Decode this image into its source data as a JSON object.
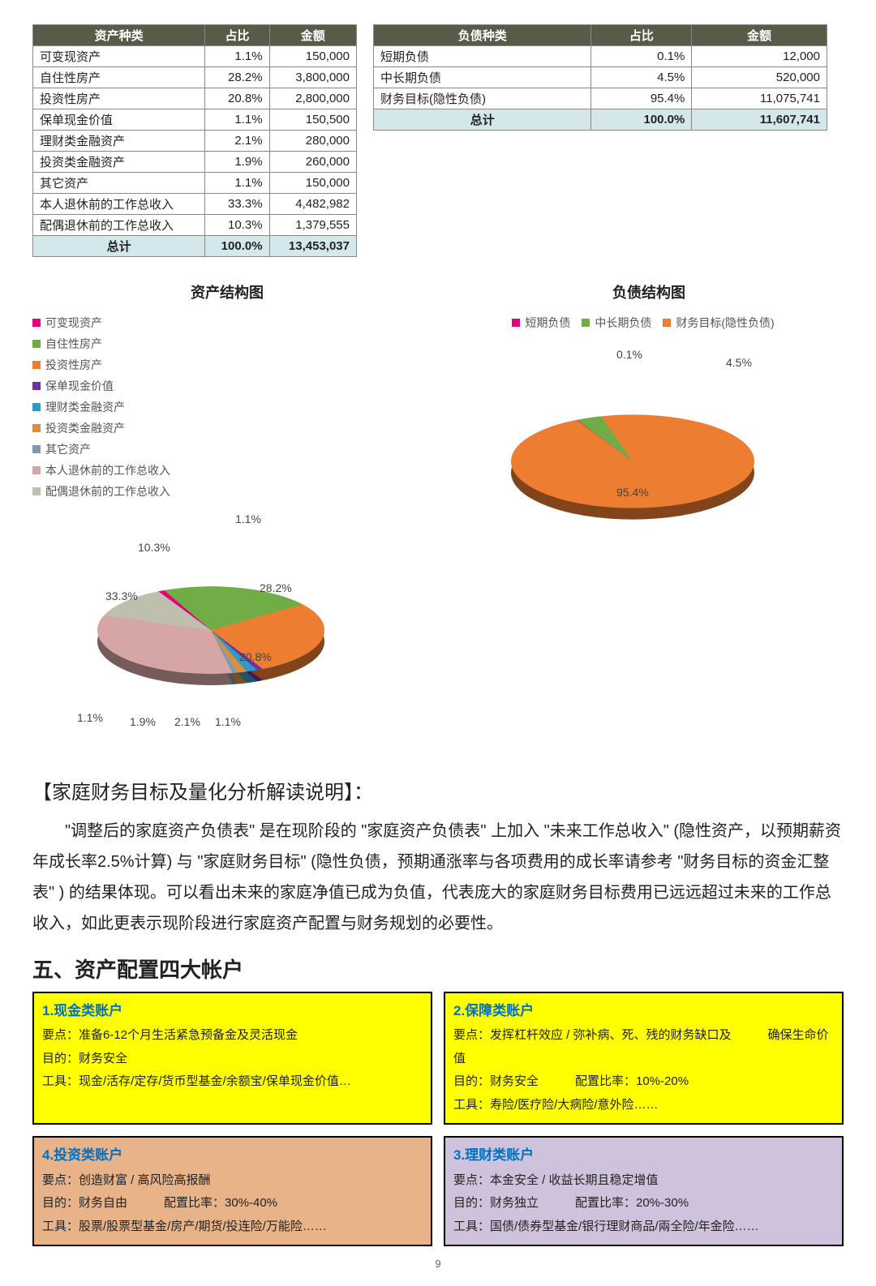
{
  "tables": {
    "assets": {
      "headers": [
        "资产种类",
        "占比",
        "金额"
      ],
      "rows": [
        [
          "可变现资产",
          "1.1%",
          "150,000"
        ],
        [
          "自住性房产",
          "28.2%",
          "3,800,000"
        ],
        [
          "投资性房产",
          "20.8%",
          "2,800,000"
        ],
        [
          "保单现金价值",
          "1.1%",
          "150,500"
        ],
        [
          "理财类金融资产",
          "2.1%",
          "280,000"
        ],
        [
          "投资类金融资产",
          "1.9%",
          "260,000"
        ],
        [
          "其它资产",
          "1.1%",
          "150,000"
        ],
        [
          "本人退休前的工作总收入",
          "33.3%",
          "4,482,982"
        ],
        [
          "配偶退休前的工作总收入",
          "10.3%",
          "1,379,555"
        ]
      ],
      "total": [
        "总计",
        "100.0%",
        "13,453,037"
      ]
    },
    "liab": {
      "headers": [
        "负债种类",
        "占比",
        "金额"
      ],
      "rows": [
        [
          "短期负债",
          "0.1%",
          "12,000"
        ],
        [
          "中长期负债",
          "4.5%",
          "520,000"
        ],
        [
          "财务目标(隐性负债)",
          "95.4%",
          "11,075,741"
        ]
      ],
      "total": [
        "总计",
        "100.0%",
        "11,607,741"
      ]
    }
  },
  "chart_assets": {
    "title": "资产结构图",
    "type": "pie",
    "series": [
      {
        "label": "可变现资产",
        "value": 1.1,
        "color": "#e6007e"
      },
      {
        "label": "自住性房产",
        "value": 28.2,
        "color": "#70ad47"
      },
      {
        "label": "投资性房产",
        "value": 20.8,
        "color": "#ed7d31"
      },
      {
        "label": "保单现金价值",
        "value": 1.1,
        "color": "#7030a0"
      },
      {
        "label": "理财类金融资产",
        "value": 2.1,
        "color": "#2e9bc6"
      },
      {
        "label": "投资类金融资产",
        "value": 1.9,
        "color": "#d98f3e"
      },
      {
        "label": "其它资产",
        "value": 1.1,
        "color": "#8497b0"
      },
      {
        "label": "本人退休前的工作总收入",
        "value": 33.3,
        "color": "#d6a5a5"
      },
      {
        "label": "配偶退休前的工作总收入",
        "value": 10.3,
        "color": "#bfbfae"
      }
    ],
    "legend_cols": 2,
    "diameter": 280,
    "thickness": 18
  },
  "chart_liab": {
    "title": "负债结构图",
    "type": "pie",
    "series": [
      {
        "label": "短期负债",
        "value": 0.1,
        "color": "#e6007e"
      },
      {
        "label": "中长期负债",
        "value": 4.5,
        "color": "#70ad47"
      },
      {
        "label": "财务目标(隐性负债)",
        "value": 95.4,
        "color": "#ed7d31"
      }
    ],
    "legend_cols": 3,
    "diameter": 300,
    "thickness": 20
  },
  "analysis": {
    "heading": "【家庭财务目标及量化分析解读说明】：",
    "body": "\"调整后的家庭资产负债表\" 是在现阶段的 \"家庭资产负债表\" 上加入 \"未来工作总收入\" (隐性资产，以预期薪资年成长率2.5%计算) 与 \"家庭财务目标\" (隐性负债，预期通涨率与各项费用的成长率请参考 \"财务目标的资金汇整表\" ) 的结果体现。可以看出未来的家庭净值已成为负值，代表庞大的家庭财务目标费用已远远超过未来的工作总收入，如此更表示现阶段进行家庭资产配置与财务规划的必要性。"
  },
  "section5_title": "五、资产配置四大帐户",
  "accounts": [
    {
      "cls": "acct-cash",
      "title": "1.现金类账户",
      "lines": [
        "要点：准备6-12个月生活紧急预备金及灵活现金",
        "目的：财务安全",
        "工具：现金/活存/定存/货币型基金/余额宝/保单现金价值…"
      ]
    },
    {
      "cls": "acct-ins",
      "title": "2.保障类账户",
      "lines": [
        "要点：发挥杠杆效应 / 弥补病、死、残的财务缺口及　　　确保生命价值",
        "目的：财务安全　　　配置比率：10%-20%",
        "工具：寿险/医疗险/大病险/意外险……"
      ]
    },
    {
      "cls": "acct-inv",
      "title": "4.投资类账户",
      "lines": [
        "要点：创造财富 / 高风险高报酬",
        "目的：财务自由　　　配置比率：30%-40%",
        "工具：股票/股票型基金/房产/期货/投连险/万能险……"
      ]
    },
    {
      "cls": "acct-fin",
      "title": "3.理财类账户",
      "lines": [
        "要点：本金安全 / 收益长期且稳定增值",
        "目的：财务独立　　　配置比率：20%-30%",
        "工具：国债/债券型基金/银行理财商品/兩全险/年金险……"
      ]
    }
  ],
  "page_number": "9"
}
